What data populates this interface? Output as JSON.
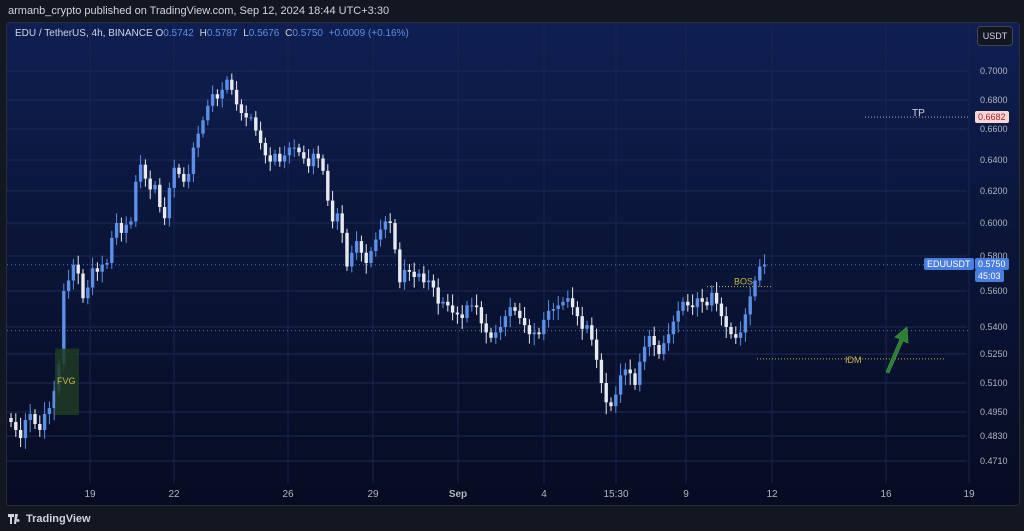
{
  "header": {
    "publish_line": "armanb_crypto published on TradingView.com, Sep 12, 2024 18:44 UTC+3:30"
  },
  "legend": {
    "symbol": "EDU / TetherUS, 4h, BINANCE",
    "open_key": "O",
    "open": "0.5742",
    "high_key": "H",
    "high": "0.5787",
    "low_key": "L",
    "low": "0.5676",
    "close_key": "C",
    "close": "0.5750",
    "change": "+0.0009 (+0.16%)"
  },
  "currency_button": "USDT",
  "y_axis": {
    "ticks": [
      {
        "label": "0.7000",
        "value": 0.7
      },
      {
        "label": "0.6800",
        "value": 0.68
      },
      {
        "label": "0.6600",
        "value": 0.66
      },
      {
        "label": "0.6400",
        "value": 0.64
      },
      {
        "label": "0.6200",
        "value": 0.62
      },
      {
        "label": "0.6000",
        "value": 0.6
      },
      {
        "label": "0.5800",
        "value": 0.58
      },
      {
        "label": "0.5600",
        "value": 0.56
      },
      {
        "label": "0.5400",
        "value": 0.54
      },
      {
        "label": "0.5250",
        "value": 0.525
      },
      {
        "label": "0.5100",
        "value": 0.51
      },
      {
        "label": "0.4950",
        "value": 0.495
      },
      {
        "label": "0.4830",
        "value": 0.483
      },
      {
        "label": "0.4710",
        "value": 0.471
      }
    ]
  },
  "x_axis": {
    "ticks": [
      {
        "label": "19",
        "bold": false
      },
      {
        "label": "22",
        "bold": false
      },
      {
        "label": "26",
        "bold": false
      },
      {
        "label": "29",
        "bold": false
      },
      {
        "label": "Sep",
        "bold": true
      },
      {
        "label": "4",
        "bold": false
      },
      {
        "label": "15:30",
        "bold": false
      },
      {
        "label": "9",
        "bold": false
      },
      {
        "label": "12",
        "bold": false
      },
      {
        "label": "16",
        "bold": false
      },
      {
        "label": "19",
        "bold": false
      }
    ]
  },
  "price_tags": {
    "tp_value": "0.6682",
    "current_symbol": "EDUUSDT",
    "current_value": "0.5750",
    "countdown": "45:03"
  },
  "annotations": {
    "tp": "TP",
    "bos": "BOS",
    "idm": "IDM",
    "fvg": "FVG"
  },
  "colors": {
    "bull": "#5b8fe8",
    "bear": "#e8eaf0",
    "tp_tag": "#f7d7d7",
    "current_tag": "#4a7de0",
    "annotation": "#c9b84a",
    "arrow": "#2e7d32"
  },
  "brand": "TradingView",
  "chart_data": {
    "type": "candlestick",
    "title": "EDU / TetherUS, 4h, BINANCE",
    "levels": {
      "tp": 0.6682,
      "bos": 0.5625,
      "idm": 0.5225,
      "current": 0.575
    },
    "closes": [
      0.49,
      0.486,
      0.482,
      0.491,
      0.494,
      0.489,
      0.486,
      0.494,
      0.497,
      0.506,
      0.52,
      0.56,
      0.566,
      0.575,
      0.57,
      0.556,
      0.562,
      0.573,
      0.571,
      0.575,
      0.576,
      0.591,
      0.6,
      0.594,
      0.599,
      0.601,
      0.626,
      0.637,
      0.628,
      0.621,
      0.624,
      0.61,
      0.603,
      0.622,
      0.635,
      0.631,
      0.626,
      0.631,
      0.648,
      0.657,
      0.666,
      0.676,
      0.684,
      0.681,
      0.687,
      0.694,
      0.687,
      0.677,
      0.671,
      0.668,
      0.668,
      0.659,
      0.651,
      0.643,
      0.639,
      0.644,
      0.639,
      0.643,
      0.648,
      0.648,
      0.645,
      0.641,
      0.636,
      0.644,
      0.641,
      0.633,
      0.614,
      0.601,
      0.606,
      0.594,
      0.574,
      0.582,
      0.589,
      0.582,
      0.576,
      0.583,
      0.59,
      0.596,
      0.601,
      0.6,
      0.584,
      0.565,
      0.572,
      0.571,
      0.568,
      0.57,
      0.565,
      0.566,
      0.562,
      0.553,
      0.554,
      0.552,
      0.548,
      0.547,
      0.545,
      0.552,
      0.552,
      0.551,
      0.542,
      0.537,
      0.534,
      0.537,
      0.54,
      0.546,
      0.551,
      0.549,
      0.545,
      0.541,
      0.536,
      0.537,
      0.536,
      0.544,
      0.549,
      0.55,
      0.552,
      0.554,
      0.556,
      0.551,
      0.546,
      0.539,
      0.541,
      0.533,
      0.522,
      0.51,
      0.5,
      0.498,
      0.504,
      0.514,
      0.517,
      0.515,
      0.509,
      0.521,
      0.529,
      0.535,
      0.53,
      0.525,
      0.531,
      0.536,
      0.543,
      0.549,
      0.554,
      0.552,
      0.551,
      0.556,
      0.554,
      0.552,
      0.559,
      0.553,
      0.546,
      0.54,
      0.536,
      0.534,
      0.537,
      0.547,
      0.557,
      0.566,
      0.574,
      0.575
    ]
  }
}
